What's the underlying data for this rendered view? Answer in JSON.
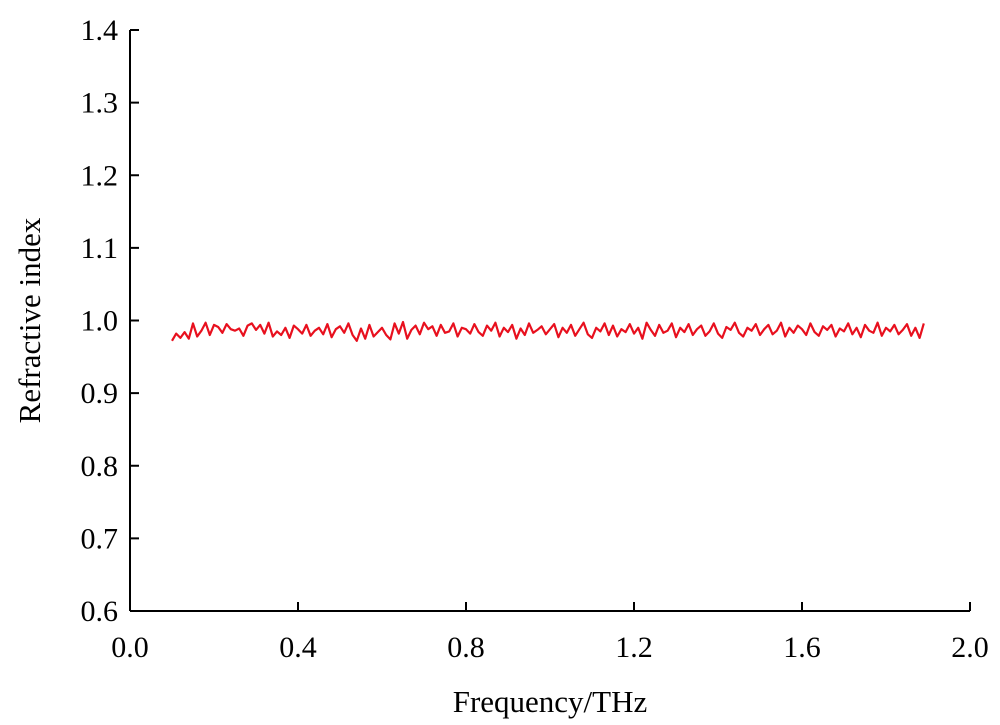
{
  "chart_data": {
    "type": "line",
    "xlabel": "Frequency/THz",
    "ylabel": "Refractive index",
    "xlim": [
      0.0,
      2.0
    ],
    "ylim": [
      0.6,
      1.4
    ],
    "x_ticks": [
      "0.0",
      "0.4",
      "0.8",
      "1.2",
      "1.6",
      "2.0"
    ],
    "x_tick_values": [
      0.0,
      0.4,
      0.8,
      1.2,
      1.6,
      2.0
    ],
    "y_ticks": [
      "0.6",
      "0.7",
      "0.8",
      "0.9",
      "1.0",
      "1.1",
      "1.2",
      "1.3",
      "1.4"
    ],
    "y_tick_values": [
      0.6,
      0.7,
      0.8,
      0.9,
      1.0,
      1.1,
      1.2,
      1.3,
      1.4
    ],
    "grid": false,
    "series": [
      {
        "color": "#e8101e",
        "x_start": 0.1,
        "x_step": 0.01,
        "y": [
          0.972,
          0.982,
          0.976,
          0.984,
          0.975,
          0.996,
          0.978,
          0.986,
          0.997,
          0.98,
          0.994,
          0.991,
          0.983,
          0.995,
          0.988,
          0.986,
          0.989,
          0.979,
          0.993,
          0.996,
          0.987,
          0.994,
          0.982,
          0.997,
          0.978,
          0.985,
          0.98,
          0.99,
          0.976,
          0.993,
          0.988,
          0.982,
          0.994,
          0.979,
          0.986,
          0.99,
          0.981,
          0.995,
          0.977,
          0.988,
          0.992,
          0.983,
          0.996,
          0.98,
          0.972,
          0.989,
          0.975,
          0.994,
          0.978,
          0.984,
          0.99,
          0.98,
          0.974,
          0.996,
          0.982,
          0.998,
          0.975,
          0.987,
          0.993,
          0.981,
          0.997,
          0.988,
          0.992,
          0.979,
          0.994,
          0.983,
          0.985,
          0.996,
          0.978,
          0.99,
          0.988,
          0.982,
          0.995,
          0.984,
          0.979,
          0.993,
          0.986,
          0.997,
          0.978,
          0.99,
          0.984,
          0.994,
          0.975,
          0.989,
          0.98,
          0.996,
          0.983,
          0.987,
          0.992,
          0.981,
          0.988,
          0.995,
          0.977,
          0.99,
          0.983,
          0.994,
          0.979,
          0.988,
          0.997,
          0.981,
          0.976,
          0.99,
          0.985,
          0.996,
          0.98,
          0.993,
          0.978,
          0.988,
          0.984,
          0.995,
          0.982,
          0.99,
          0.975,
          0.997,
          0.987,
          0.979,
          0.994,
          0.983,
          0.986,
          0.996,
          0.977,
          0.99,
          0.984,
          0.995,
          0.98,
          0.988,
          0.993,
          0.979,
          0.985,
          0.996,
          0.982,
          0.976,
          0.991,
          0.987,
          0.997,
          0.983,
          0.978,
          0.99,
          0.986,
          0.995,
          0.98,
          0.988,
          0.994,
          0.981,
          0.986,
          0.997,
          0.978,
          0.99,
          0.983,
          0.993,
          0.988,
          0.98,
          0.996,
          0.984,
          0.979,
          0.992,
          0.987,
          0.994,
          0.978,
          0.989,
          0.985,
          0.996,
          0.981,
          0.99,
          0.977,
          0.994,
          0.986,
          0.983,
          0.997,
          0.979,
          0.99,
          0.985,
          0.994,
          0.981,
          0.987,
          0.995,
          0.979,
          0.99,
          0.976,
          0.996
        ]
      }
    ]
  }
}
